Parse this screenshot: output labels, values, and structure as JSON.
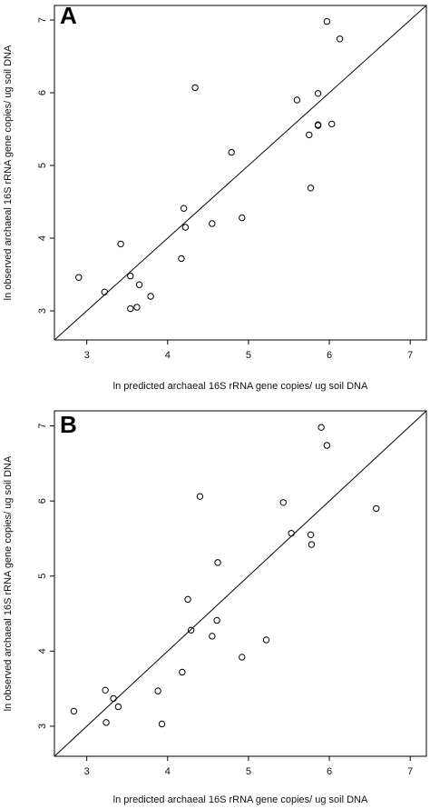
{
  "chart_data": [
    {
      "type": "scatter",
      "panel_label": "A",
      "xlabel": "ln predicted archaeal 16S rRNA gene copies/ ug soil DNA",
      "ylabel": "ln observed archaeal 16S rRNA gene copies/ ug soil DNA",
      "xlim": [
        2.6,
        7.2
      ],
      "ylim": [
        2.6,
        7.2
      ],
      "xticks": [
        "3",
        "4",
        "5",
        "6",
        "7"
      ],
      "yticks": [
        "3",
        "4",
        "5",
        "6",
        "7"
      ],
      "reference_line": "y = x",
      "grid": false,
      "points": [
        {
          "x": 2.9,
          "y": 3.46
        },
        {
          "x": 3.22,
          "y": 3.26
        },
        {
          "x": 3.42,
          "y": 3.92
        },
        {
          "x": 3.54,
          "y": 3.48
        },
        {
          "x": 3.54,
          "y": 3.03
        },
        {
          "x": 3.62,
          "y": 3.05
        },
        {
          "x": 3.65,
          "y": 3.36
        },
        {
          "x": 3.79,
          "y": 3.2
        },
        {
          "x": 4.17,
          "y": 3.72
        },
        {
          "x": 4.2,
          "y": 4.41
        },
        {
          "x": 4.22,
          "y": 4.15
        },
        {
          "x": 4.34,
          "y": 6.07
        },
        {
          "x": 4.55,
          "y": 4.2
        },
        {
          "x": 4.79,
          "y": 5.18
        },
        {
          "x": 4.92,
          "y": 4.28
        },
        {
          "x": 5.6,
          "y": 5.9
        },
        {
          "x": 5.75,
          "y": 5.42
        },
        {
          "x": 5.77,
          "y": 4.69
        },
        {
          "x": 5.86,
          "y": 5.99
        },
        {
          "x": 5.86,
          "y": 5.56
        },
        {
          "x": 5.86,
          "y": 5.55
        },
        {
          "x": 5.97,
          "y": 6.98
        },
        {
          "x": 6.03,
          "y": 5.57
        },
        {
          "x": 6.13,
          "y": 6.74
        }
      ]
    },
    {
      "type": "scatter",
      "panel_label": "B",
      "xlabel": "ln predicted archaeal 16S rRNA gene copies/ ug soil DNA",
      "ylabel": "ln observed archaeal 16S rRNA gene copies/ ug soil DNA",
      "xlim": [
        2.6,
        7.2
      ],
      "ylim": [
        2.6,
        7.2
      ],
      "xticks": [
        "3",
        "4",
        "5",
        "6",
        "7"
      ],
      "yticks": [
        "3",
        "4",
        "5",
        "6",
        "7"
      ],
      "reference_line": "y = x",
      "grid": false,
      "points": [
        {
          "x": 2.84,
          "y": 3.2
        },
        {
          "x": 3.23,
          "y": 3.48
        },
        {
          "x": 3.24,
          "y": 3.05
        },
        {
          "x": 3.33,
          "y": 3.37
        },
        {
          "x": 3.39,
          "y": 3.26
        },
        {
          "x": 3.88,
          "y": 3.47
        },
        {
          "x": 3.93,
          "y": 3.03
        },
        {
          "x": 4.18,
          "y": 3.72
        },
        {
          "x": 4.25,
          "y": 4.69
        },
        {
          "x": 4.29,
          "y": 4.28
        },
        {
          "x": 4.4,
          "y": 6.06
        },
        {
          "x": 4.55,
          "y": 4.2
        },
        {
          "x": 4.61,
          "y": 4.41
        },
        {
          "x": 4.62,
          "y": 5.18
        },
        {
          "x": 4.92,
          "y": 3.92
        },
        {
          "x": 5.22,
          "y": 4.15
        },
        {
          "x": 5.43,
          "y": 5.98
        },
        {
          "x": 5.53,
          "y": 5.57
        },
        {
          "x": 5.77,
          "y": 5.55
        },
        {
          "x": 5.78,
          "y": 5.42
        },
        {
          "x": 5.9,
          "y": 6.98
        },
        {
          "x": 5.97,
          "y": 6.74
        },
        {
          "x": 6.58,
          "y": 5.9
        }
      ]
    }
  ]
}
